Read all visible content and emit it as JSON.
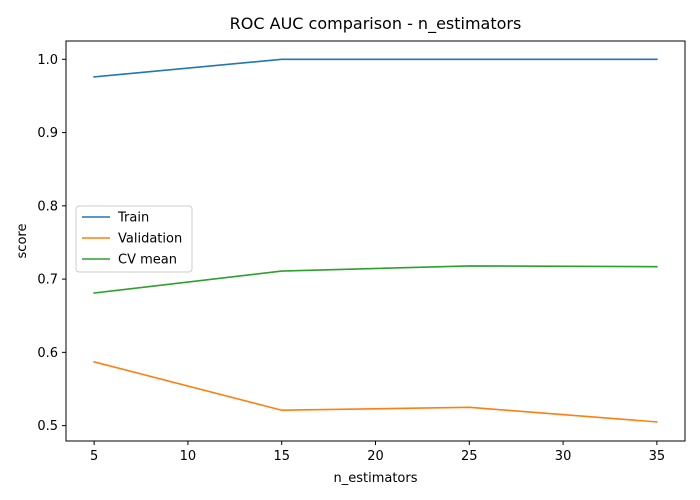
{
  "chart_data": {
    "type": "line",
    "title": "ROC AUC comparison - n_estimators",
    "xlabel": "n_estimators",
    "ylabel": "score",
    "x": [
      5,
      15,
      25,
      35
    ],
    "xlim": [
      3.5,
      36.5
    ],
    "ylim": [
      0.479,
      1.025
    ],
    "xticks": [
      5,
      10,
      15,
      20,
      25,
      30,
      35
    ],
    "yticks": [
      0.5,
      0.6,
      0.7,
      0.8,
      0.9,
      1.0
    ],
    "xtick_labels": [
      "5",
      "10",
      "15",
      "20",
      "25",
      "30",
      "35"
    ],
    "ytick_labels": [
      "0.5",
      "0.6",
      "0.7",
      "0.8",
      "0.9",
      "1.0"
    ],
    "grid": false,
    "legend_position": "center-left",
    "series": [
      {
        "name": "Train",
        "color": "#1f77b4",
        "values": [
          0.976,
          1.0,
          1.0,
          1.0
        ]
      },
      {
        "name": "Validation",
        "color": "#ff7f0e",
        "values": [
          0.587,
          0.521,
          0.525,
          0.505
        ]
      },
      {
        "name": "CV mean",
        "color": "#2ca02c",
        "values": [
          0.681,
          0.711,
          0.718,
          0.717
        ]
      }
    ]
  }
}
